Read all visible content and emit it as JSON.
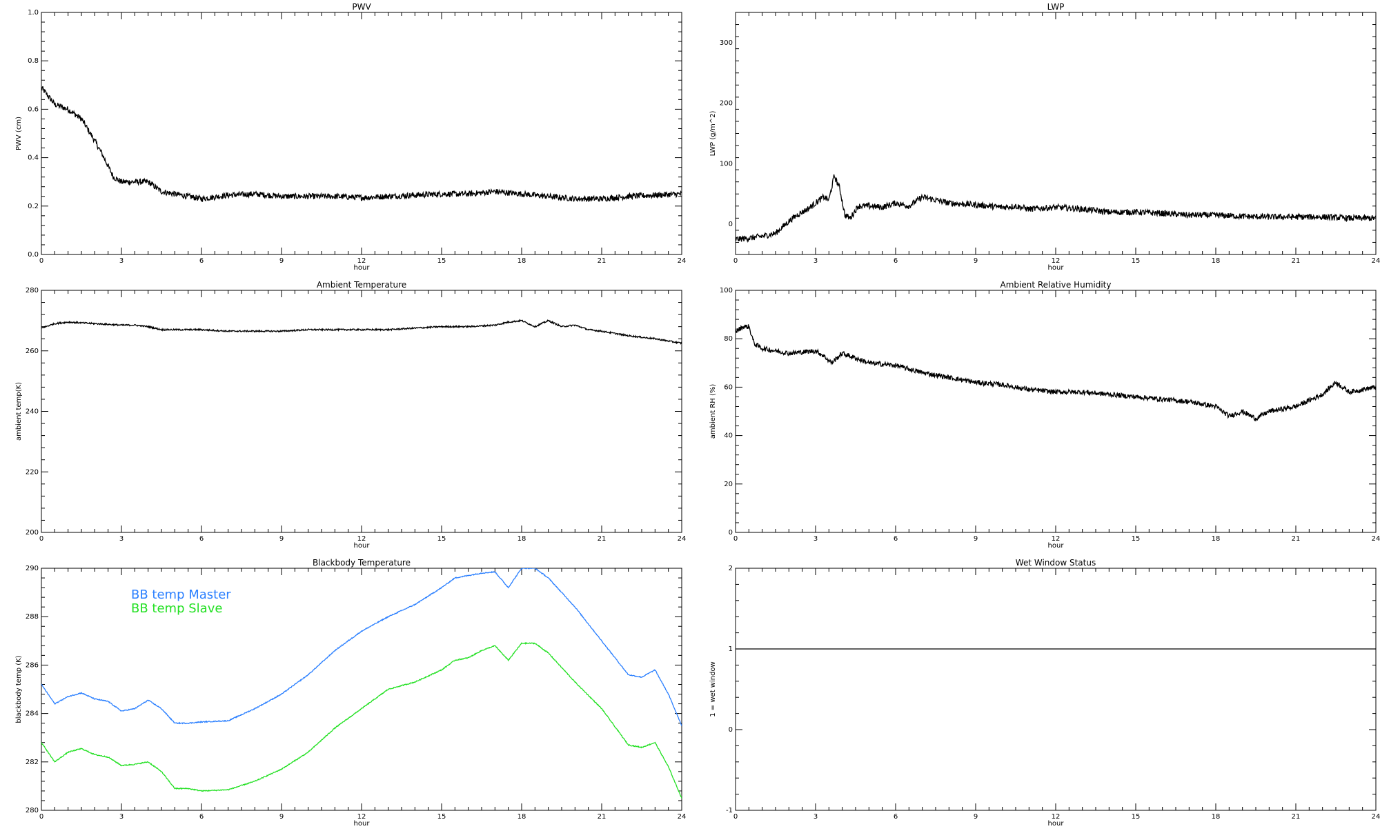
{
  "chart_data": [
    {
      "id": "pwv",
      "type": "line",
      "title": "PWV",
      "xlabel": "hour",
      "ylabel": "PWV (cm)",
      "xlim": [
        0,
        24
      ],
      "ylim": [
        0,
        1
      ],
      "xticks": [
        0,
        3,
        6,
        9,
        12,
        15,
        18,
        21,
        24
      ],
      "yticks": [
        "0.0",
        "0.2",
        "0.4",
        "0.6",
        "0.8",
        "1.0"
      ],
      "series": [
        {
          "color": "#000000",
          "noise": 0.012,
          "x": [
            0,
            0.5,
            1,
            1.5,
            2,
            2.3,
            2.7,
            3,
            3.5,
            4,
            4.5,
            5,
            5.5,
            6,
            7,
            8,
            9,
            10,
            11,
            12,
            13,
            14,
            15,
            16,
            17,
            18,
            19,
            20,
            21,
            22,
            23,
            24
          ],
          "y": [
            0.69,
            0.62,
            0.6,
            0.56,
            0.47,
            0.41,
            0.32,
            0.3,
            0.3,
            0.3,
            0.26,
            0.25,
            0.24,
            0.23,
            0.245,
            0.25,
            0.24,
            0.24,
            0.24,
            0.235,
            0.24,
            0.245,
            0.25,
            0.25,
            0.26,
            0.25,
            0.24,
            0.23,
            0.23,
            0.24,
            0.245,
            0.25
          ]
        }
      ]
    },
    {
      "id": "lwp",
      "type": "line",
      "title": "LWP",
      "xlabel": "hour",
      "ylabel": "LWP (g/m^2)",
      "xlim": [
        0,
        24
      ],
      "ylim": [
        -50,
        350
      ],
      "xticks": [
        0,
        3,
        6,
        9,
        12,
        15,
        18,
        21,
        24
      ],
      "yticks": [
        "0",
        "100",
        "200",
        "300"
      ],
      "series": [
        {
          "color": "#000000",
          "noise": 5,
          "x": [
            0,
            0.5,
            1,
            1.5,
            2,
            2.3,
            2.7,
            3,
            3.3,
            3.5,
            3.7,
            3.9,
            4.1,
            4.3,
            4.6,
            5,
            5.5,
            6,
            6.5,
            7,
            7.5,
            8,
            9,
            10,
            10.5,
            11,
            12,
            13,
            14,
            15,
            16,
            17,
            18,
            19,
            20,
            21,
            22,
            23,
            24
          ],
          "y": [
            -25,
            -23,
            -20,
            -15,
            5,
            15,
            25,
            35,
            45,
            40,
            80,
            60,
            15,
            10,
            30,
            30,
            28,
            35,
            30,
            45,
            40,
            35,
            32,
            28,
            30,
            25,
            28,
            25,
            20,
            20,
            18,
            15,
            15,
            13,
            12,
            12,
            12,
            10,
            10
          ]
        }
      ]
    },
    {
      "id": "ambient-temperature",
      "type": "line",
      "title": "Ambient Temperature",
      "xlabel": "hour",
      "ylabel": "ambient temp(K)",
      "xlim": [
        0,
        24
      ],
      "ylim": [
        200,
        280
      ],
      "xticks": [
        0,
        3,
        6,
        9,
        12,
        15,
        18,
        21,
        24
      ],
      "yticks": [
        "200",
        "220",
        "240",
        "260",
        "280"
      ],
      "series": [
        {
          "color": "#000000",
          "noise": 0.25,
          "x": [
            0,
            0.5,
            1,
            2,
            3,
            3.5,
            4,
            4.5,
            5,
            6,
            7,
            8,
            9,
            10,
            11,
            12,
            13,
            14,
            15,
            16,
            17,
            17.5,
            18,
            18.5,
            19,
            19.5,
            20,
            20.5,
            21,
            22,
            23,
            24
          ],
          "y": [
            267.5,
            269,
            269.5,
            269,
            268.5,
            268.5,
            268,
            267,
            267,
            267,
            266.5,
            266.5,
            266.5,
            267,
            267,
            267,
            267,
            267.5,
            268,
            268,
            268.5,
            269.5,
            270,
            268,
            270,
            268,
            268.5,
            267,
            266.5,
            265,
            264,
            262.5
          ]
        }
      ]
    },
    {
      "id": "ambient-relative-humidity",
      "type": "line",
      "title": "Ambient Relative Humidity",
      "xlabel": "hour",
      "ylabel": "ambient RH (%)",
      "xlim": [
        0,
        24
      ],
      "ylim": [
        0,
        100
      ],
      "xticks": [
        0,
        3,
        6,
        9,
        12,
        15,
        18,
        21,
        24
      ],
      "yticks": [
        "0",
        "20",
        "40",
        "60",
        "80",
        "100"
      ],
      "series": [
        {
          "color": "#000000",
          "noise": 1,
          "x": [
            0,
            0.3,
            0.5,
            0.7,
            1,
            1.5,
            2,
            3,
            3.3,
            3.6,
            4,
            4.5,
            5,
            6,
            7,
            8,
            9,
            10,
            11,
            12,
            13,
            14,
            15,
            16,
            17,
            18,
            18.5,
            19,
            19.5,
            20,
            21,
            22,
            22.5,
            23,
            24
          ],
          "y": [
            83,
            85,
            85,
            78,
            76,
            75,
            74,
            75,
            73,
            70,
            74,
            72,
            70,
            69,
            66,
            64,
            62,
            61,
            59,
            58,
            58,
            57,
            56,
            55,
            54,
            52,
            48,
            50,
            47,
            50,
            52,
            57,
            62,
            58,
            60
          ]
        }
      ]
    },
    {
      "id": "blackbody-temperature",
      "type": "line",
      "title": "Blackbody Temperature",
      "xlabel": "hour",
      "ylabel": "blackbody temp (K)",
      "xlim": [
        0,
        24
      ],
      "ylim": [
        280,
        290
      ],
      "xticks": [
        0,
        3,
        6,
        9,
        12,
        15,
        18,
        21,
        24
      ],
      "yticks": [
        "280",
        "282",
        "284",
        "286",
        "288",
        "290"
      ],
      "legend_position": "top-left",
      "series": [
        {
          "name": "BB temp Master",
          "color": "#2a7fff",
          "noise": 0.02,
          "x": [
            0,
            0.5,
            1,
            1.5,
            2,
            2.5,
            3,
            3.5,
            4,
            4.5,
            5,
            5.5,
            6,
            7,
            8,
            9,
            10,
            11,
            12,
            13,
            14,
            15,
            15.5,
            16,
            16.5,
            17,
            17.5,
            18,
            18.5,
            19,
            19.5,
            20,
            21,
            22,
            22.5,
            23,
            23.5,
            24
          ],
          "y": [
            285.2,
            284.4,
            284.7,
            284.85,
            284.6,
            284.5,
            284.1,
            284.2,
            284.55,
            284.2,
            283.6,
            283.6,
            283.65,
            283.7,
            284.2,
            284.8,
            285.6,
            286.6,
            287.4,
            288.0,
            288.5,
            289.2,
            289.6,
            289.7,
            289.8,
            289.85,
            289.2,
            290.0,
            290.0,
            289.6,
            289.0,
            288.4,
            287.0,
            285.6,
            285.5,
            285.8,
            284.8,
            283.5
          ]
        },
        {
          "name": "BB temp Slave",
          "color": "#22e022",
          "noise": 0.02,
          "x": [
            0,
            0.5,
            1,
            1.5,
            2,
            2.5,
            3,
            3.5,
            4,
            4.5,
            5,
            5.5,
            6,
            7,
            8,
            9,
            10,
            11,
            12,
            13,
            14,
            15,
            15.5,
            16,
            16.5,
            17,
            17.5,
            18,
            18.5,
            19,
            19.5,
            20,
            21,
            22,
            22.5,
            23,
            23.5,
            24
          ],
          "y": [
            282.8,
            282.0,
            282.4,
            282.55,
            282.3,
            282.2,
            281.85,
            281.9,
            282.0,
            281.6,
            280.9,
            280.9,
            280.8,
            280.85,
            281.2,
            281.7,
            282.4,
            283.4,
            284.2,
            285.0,
            285.3,
            285.8,
            286.2,
            286.3,
            286.6,
            286.8,
            286.2,
            286.9,
            286.9,
            286.5,
            285.9,
            285.3,
            284.2,
            282.7,
            282.6,
            282.8,
            281.8,
            280.5
          ]
        }
      ]
    },
    {
      "id": "wet-window-status",
      "type": "line",
      "title": "Wet Window Status",
      "xlabel": "hour",
      "ylabel": "1 = wet window",
      "xlim": [
        0,
        24
      ],
      "ylim": [
        -1,
        2
      ],
      "xticks": [
        0,
        3,
        6,
        9,
        12,
        15,
        18,
        21,
        24
      ],
      "yticks": [
        "-1",
        "0",
        "1",
        "2"
      ],
      "series": [
        {
          "color": "#000000",
          "noise": 0,
          "x": [
            0,
            24
          ],
          "y": [
            1,
            1
          ]
        }
      ]
    }
  ]
}
